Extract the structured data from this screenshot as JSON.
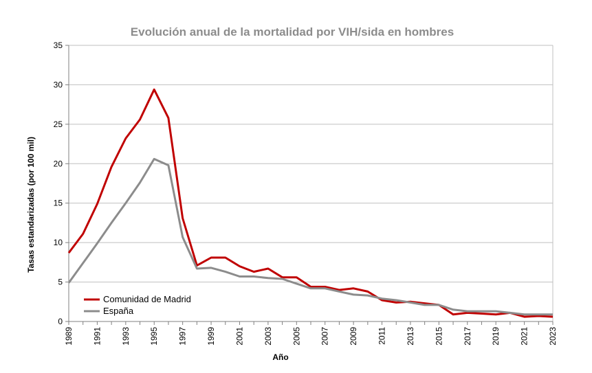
{
  "chart_data": {
    "type": "line",
    "title": "Evolución anual de la mortalidad por VIH/sida en hombres",
    "xlabel": "Año",
    "ylabel": "Tasas estandarizadas (por 100 mil)",
    "ylim": [
      0,
      35
    ],
    "yticks": [
      0,
      5,
      10,
      15,
      20,
      25,
      30,
      35
    ],
    "x": [
      1989,
      1990,
      1991,
      1992,
      1993,
      1994,
      1995,
      1996,
      1997,
      1998,
      1999,
      2000,
      2001,
      2002,
      2003,
      2004,
      2005,
      2006,
      2007,
      2008,
      2009,
      2010,
      2011,
      2012,
      2013,
      2014,
      2015,
      2016,
      2017,
      2018,
      2019,
      2020,
      2021,
      2022,
      2023
    ],
    "xtick_labels": [
      "1989",
      "1991",
      "1993",
      "1995",
      "1997",
      "1999",
      "2001",
      "2003",
      "2005",
      "2007",
      "2009",
      "2011",
      "2013",
      "2015",
      "2017",
      "2019",
      "2021",
      "2023"
    ],
    "grid": true,
    "legend_position": "bottom-left",
    "series": [
      {
        "name": "Comunidad de Madrid",
        "color": "#c00000",
        "values": [
          8.7,
          11.1,
          14.9,
          19.6,
          23.2,
          25.6,
          29.4,
          25.8,
          13.1,
          7.1,
          8.1,
          8.1,
          7.0,
          6.3,
          6.7,
          5.6,
          5.6,
          4.4,
          4.4,
          4.0,
          4.2,
          3.8,
          2.7,
          2.4,
          2.5,
          2.3,
          2.1,
          0.9,
          1.1,
          1.0,
          0.9,
          1.1,
          0.6,
          0.7,
          0.6
        ]
      },
      {
        "name": "España",
        "color": "#8c8c8c",
        "values": [
          4.9,
          7.4,
          9.9,
          12.5,
          15.0,
          17.6,
          20.6,
          19.8,
          10.7,
          6.7,
          6.8,
          6.3,
          5.7,
          5.7,
          5.5,
          5.4,
          4.8,
          4.2,
          4.2,
          3.8,
          3.4,
          3.3,
          2.9,
          2.7,
          2.4,
          2.1,
          2.1,
          1.5,
          1.3,
          1.3,
          1.3,
          1.1,
          0.9,
          0.9,
          0.9
        ]
      }
    ]
  }
}
